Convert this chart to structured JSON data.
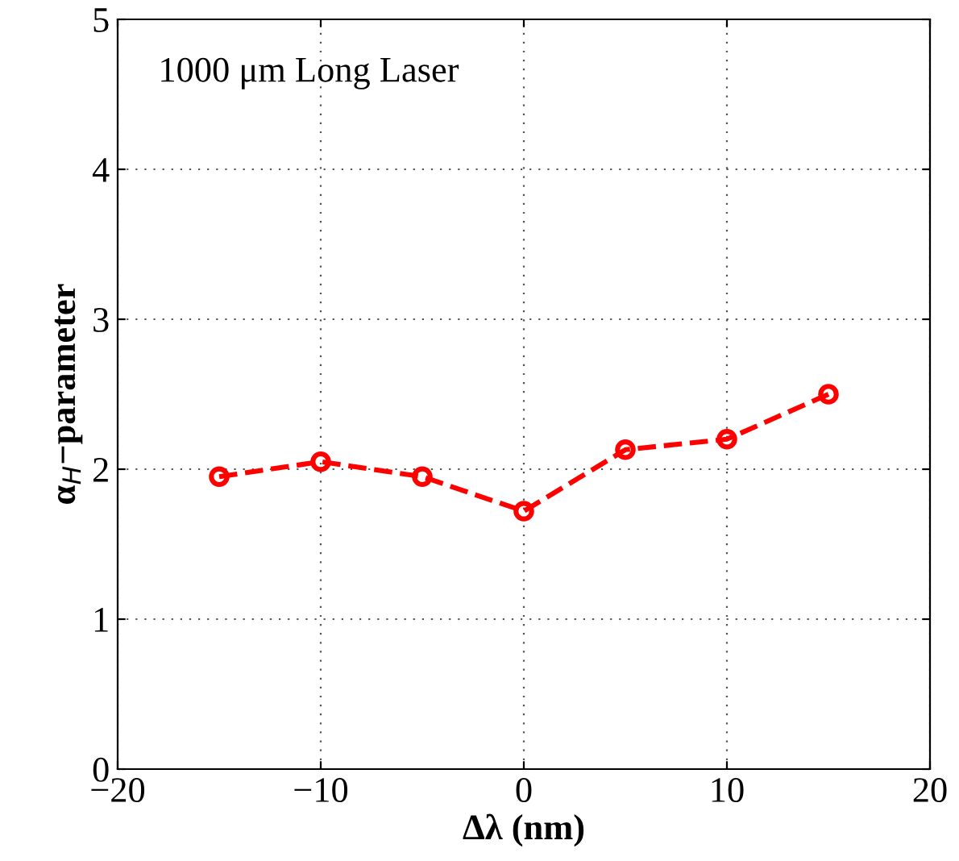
{
  "chart_data": {
    "type": "line",
    "xlabel": "Δλ (nm)",
    "ylabel": "α$_{H}$−parameter",
    "annotations": [
      "1000 μm Long Laser"
    ],
    "x": [
      -15,
      -10,
      -5,
      0,
      5,
      10,
      15
    ],
    "series": [
      {
        "color": "#ff0000",
        "values": [
          1.95,
          2.05,
          1.95,
          1.72,
          2.13,
          2.2,
          2.5
        ]
      }
    ],
    "xlim": [
      -20,
      20
    ],
    "ylim": [
      0,
      5
    ],
    "xticks": [
      -20,
      -10,
      0,
      10,
      20
    ],
    "yticks": [
      0,
      1,
      2,
      3,
      4,
      5
    ],
    "grid": true,
    "marker": "circle",
    "line_style": "dashed"
  }
}
